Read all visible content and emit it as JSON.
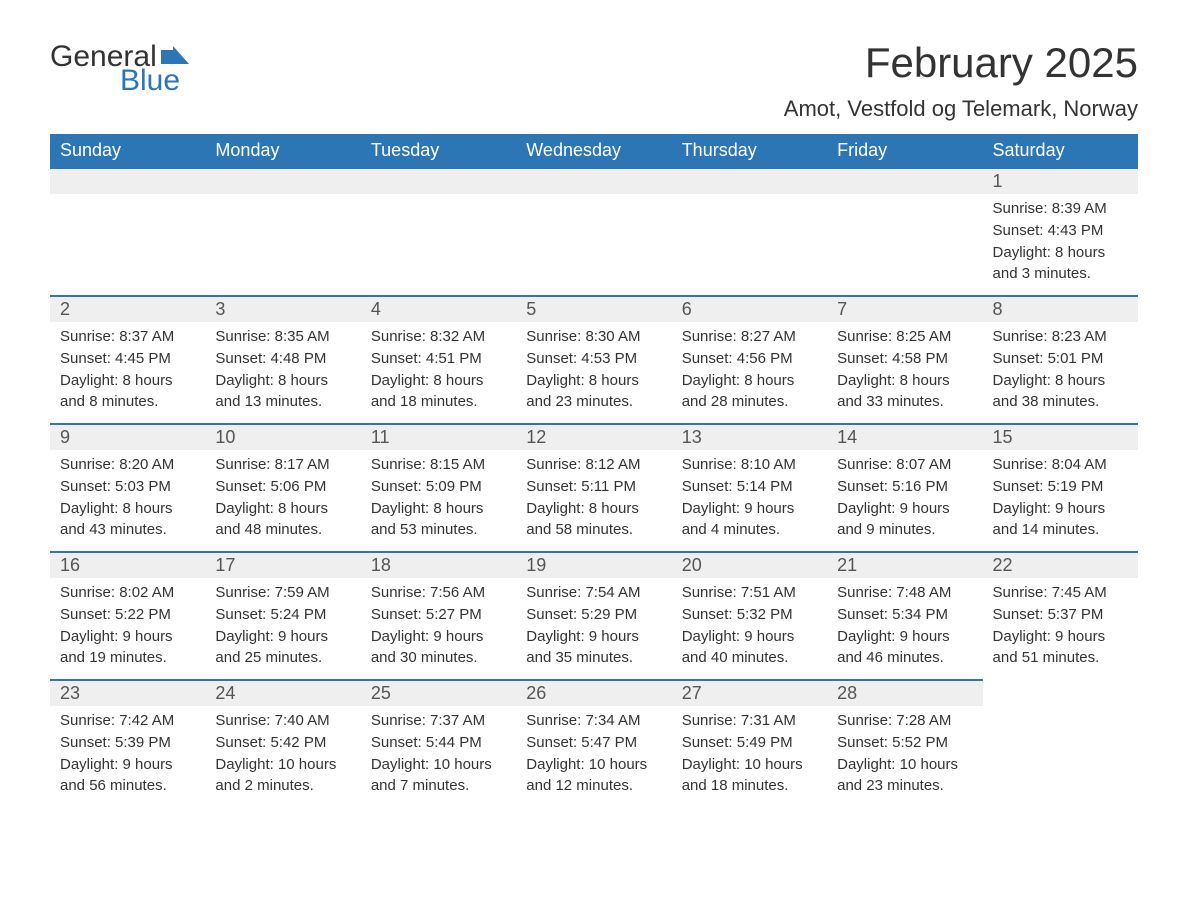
{
  "logo": {
    "text1": "General",
    "text2": "Blue",
    "color1": "#333333",
    "color2": "#2d76b6"
  },
  "title": "February 2025",
  "location": "Amot, Vestfold og Telemark, Norway",
  "colors": {
    "header_bg": "#2d76b6",
    "header_text": "#ffffff",
    "daynum_bg": "#efefef",
    "border_top": "#2d76b6",
    "body_text": "#333333",
    "page_bg": "#ffffff"
  },
  "fonts": {
    "title_size": 42,
    "location_size": 22,
    "header_size": 18,
    "daynum_size": 18,
    "body_size": 15
  },
  "weekdays": [
    "Sunday",
    "Monday",
    "Tuesday",
    "Wednesday",
    "Thursday",
    "Friday",
    "Saturday"
  ],
  "weeks": [
    [
      null,
      null,
      null,
      null,
      null,
      null,
      {
        "n": "1",
        "sunrise": "Sunrise: 8:39 AM",
        "sunset": "Sunset: 4:43 PM",
        "day1": "Daylight: 8 hours",
        "day2": "and 3 minutes."
      }
    ],
    [
      {
        "n": "2",
        "sunrise": "Sunrise: 8:37 AM",
        "sunset": "Sunset: 4:45 PM",
        "day1": "Daylight: 8 hours",
        "day2": "and 8 minutes."
      },
      {
        "n": "3",
        "sunrise": "Sunrise: 8:35 AM",
        "sunset": "Sunset: 4:48 PM",
        "day1": "Daylight: 8 hours",
        "day2": "and 13 minutes."
      },
      {
        "n": "4",
        "sunrise": "Sunrise: 8:32 AM",
        "sunset": "Sunset: 4:51 PM",
        "day1": "Daylight: 8 hours",
        "day2": "and 18 minutes."
      },
      {
        "n": "5",
        "sunrise": "Sunrise: 8:30 AM",
        "sunset": "Sunset: 4:53 PM",
        "day1": "Daylight: 8 hours",
        "day2": "and 23 minutes."
      },
      {
        "n": "6",
        "sunrise": "Sunrise: 8:27 AM",
        "sunset": "Sunset: 4:56 PM",
        "day1": "Daylight: 8 hours",
        "day2": "and 28 minutes."
      },
      {
        "n": "7",
        "sunrise": "Sunrise: 8:25 AM",
        "sunset": "Sunset: 4:58 PM",
        "day1": "Daylight: 8 hours",
        "day2": "and 33 minutes."
      },
      {
        "n": "8",
        "sunrise": "Sunrise: 8:23 AM",
        "sunset": "Sunset: 5:01 PM",
        "day1": "Daylight: 8 hours",
        "day2": "and 38 minutes."
      }
    ],
    [
      {
        "n": "9",
        "sunrise": "Sunrise: 8:20 AM",
        "sunset": "Sunset: 5:03 PM",
        "day1": "Daylight: 8 hours",
        "day2": "and 43 minutes."
      },
      {
        "n": "10",
        "sunrise": "Sunrise: 8:17 AM",
        "sunset": "Sunset: 5:06 PM",
        "day1": "Daylight: 8 hours",
        "day2": "and 48 minutes."
      },
      {
        "n": "11",
        "sunrise": "Sunrise: 8:15 AM",
        "sunset": "Sunset: 5:09 PM",
        "day1": "Daylight: 8 hours",
        "day2": "and 53 minutes."
      },
      {
        "n": "12",
        "sunrise": "Sunrise: 8:12 AM",
        "sunset": "Sunset: 5:11 PM",
        "day1": "Daylight: 8 hours",
        "day2": "and 58 minutes."
      },
      {
        "n": "13",
        "sunrise": "Sunrise: 8:10 AM",
        "sunset": "Sunset: 5:14 PM",
        "day1": "Daylight: 9 hours",
        "day2": "and 4 minutes."
      },
      {
        "n": "14",
        "sunrise": "Sunrise: 8:07 AM",
        "sunset": "Sunset: 5:16 PM",
        "day1": "Daylight: 9 hours",
        "day2": "and 9 minutes."
      },
      {
        "n": "15",
        "sunrise": "Sunrise: 8:04 AM",
        "sunset": "Sunset: 5:19 PM",
        "day1": "Daylight: 9 hours",
        "day2": "and 14 minutes."
      }
    ],
    [
      {
        "n": "16",
        "sunrise": "Sunrise: 8:02 AM",
        "sunset": "Sunset: 5:22 PM",
        "day1": "Daylight: 9 hours",
        "day2": "and 19 minutes."
      },
      {
        "n": "17",
        "sunrise": "Sunrise: 7:59 AM",
        "sunset": "Sunset: 5:24 PM",
        "day1": "Daylight: 9 hours",
        "day2": "and 25 minutes."
      },
      {
        "n": "18",
        "sunrise": "Sunrise: 7:56 AM",
        "sunset": "Sunset: 5:27 PM",
        "day1": "Daylight: 9 hours",
        "day2": "and 30 minutes."
      },
      {
        "n": "19",
        "sunrise": "Sunrise: 7:54 AM",
        "sunset": "Sunset: 5:29 PM",
        "day1": "Daylight: 9 hours",
        "day2": "and 35 minutes."
      },
      {
        "n": "20",
        "sunrise": "Sunrise: 7:51 AM",
        "sunset": "Sunset: 5:32 PM",
        "day1": "Daylight: 9 hours",
        "day2": "and 40 minutes."
      },
      {
        "n": "21",
        "sunrise": "Sunrise: 7:48 AM",
        "sunset": "Sunset: 5:34 PM",
        "day1": "Daylight: 9 hours",
        "day2": "and 46 minutes."
      },
      {
        "n": "22",
        "sunrise": "Sunrise: 7:45 AM",
        "sunset": "Sunset: 5:37 PM",
        "day1": "Daylight: 9 hours",
        "day2": "and 51 minutes."
      }
    ],
    [
      {
        "n": "23",
        "sunrise": "Sunrise: 7:42 AM",
        "sunset": "Sunset: 5:39 PM",
        "day1": "Daylight: 9 hours",
        "day2": "and 56 minutes."
      },
      {
        "n": "24",
        "sunrise": "Sunrise: 7:40 AM",
        "sunset": "Sunset: 5:42 PM",
        "day1": "Daylight: 10 hours",
        "day2": "and 2 minutes."
      },
      {
        "n": "25",
        "sunrise": "Sunrise: 7:37 AM",
        "sunset": "Sunset: 5:44 PM",
        "day1": "Daylight: 10 hours",
        "day2": "and 7 minutes."
      },
      {
        "n": "26",
        "sunrise": "Sunrise: 7:34 AM",
        "sunset": "Sunset: 5:47 PM",
        "day1": "Daylight: 10 hours",
        "day2": "and 12 minutes."
      },
      {
        "n": "27",
        "sunrise": "Sunrise: 7:31 AM",
        "sunset": "Sunset: 5:49 PM",
        "day1": "Daylight: 10 hours",
        "day2": "and 18 minutes."
      },
      {
        "n": "28",
        "sunrise": "Sunrise: 7:28 AM",
        "sunset": "Sunset: 5:52 PM",
        "day1": "Daylight: 10 hours",
        "day2": "and 23 minutes."
      },
      null
    ]
  ]
}
